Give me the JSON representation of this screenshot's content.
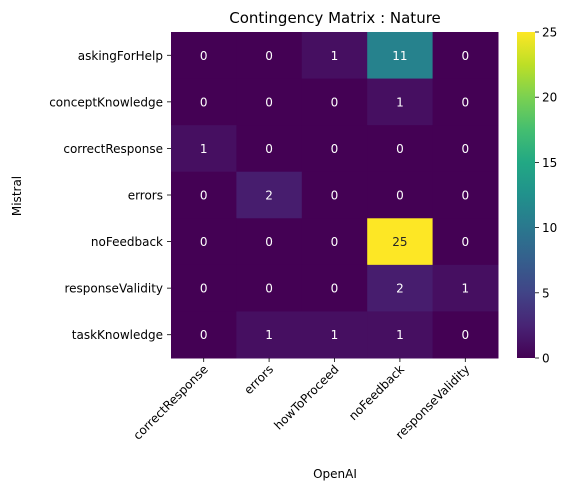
{
  "chart_data": {
    "type": "heatmap",
    "title": "Contingency Matrix : Nature",
    "xlabel": "OpenAI",
    "ylabel": "Mistral",
    "x_categories": [
      "correctResponse",
      "errors",
      "howToProceed",
      "noFeedback",
      "responseValidity"
    ],
    "y_categories": [
      "askingForHelp",
      "conceptKnowledge",
      "correctResponse",
      "errors",
      "noFeedback",
      "responseValidity",
      "taskKnowledge"
    ],
    "values": [
      [
        0,
        0,
        1,
        11,
        0
      ],
      [
        0,
        0,
        0,
        1,
        0
      ],
      [
        1,
        0,
        0,
        0,
        0
      ],
      [
        0,
        2,
        0,
        0,
        0
      ],
      [
        0,
        0,
        0,
        25,
        0
      ],
      [
        0,
        0,
        0,
        2,
        1
      ],
      [
        0,
        1,
        1,
        1,
        0
      ]
    ],
    "colormap": "viridis",
    "vmin": 0,
    "vmax": 25,
    "colorbar_ticks": [
      0,
      5,
      10,
      15,
      20,
      25
    ],
    "annotations": true
  }
}
